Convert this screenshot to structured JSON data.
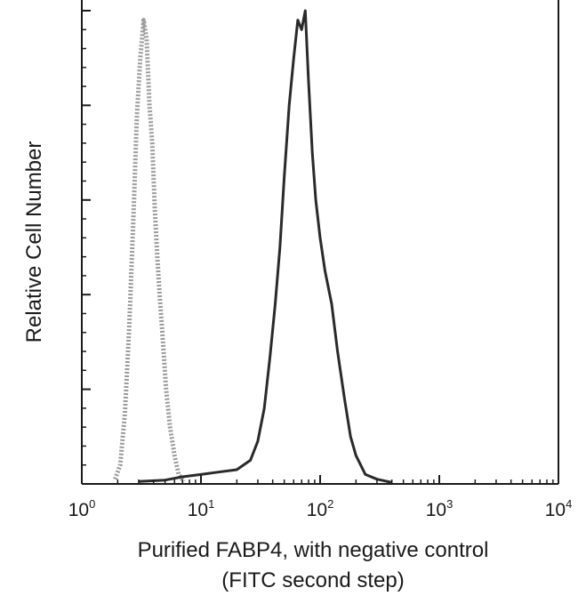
{
  "chart_data": {
    "type": "line",
    "title": "",
    "xscale": "log",
    "xlim": [
      1,
      10000
    ],
    "xticks": [
      {
        "value": 1,
        "base": "10",
        "exp": "0"
      },
      {
        "value": 10,
        "base": "10",
        "exp": "1"
      },
      {
        "value": 100,
        "base": "10",
        "exp": "2"
      },
      {
        "value": 1000,
        "base": "10",
        "exp": "3"
      },
      {
        "value": 10000,
        "base": "10",
        "exp": "4"
      }
    ],
    "xlabel_line1": "Purified FABP4, with negative control",
    "xlabel_line2": "(FITC second step)",
    "ylabel": "Relative Cell Number",
    "ylim": [
      0,
      100
    ],
    "yticks": [
      0,
      20,
      40,
      60,
      80,
      100
    ],
    "grid": false,
    "legend": "none",
    "series": [
      {
        "style": "dotted",
        "color": "#9a9a9a",
        "x": [
          1.9,
          2.1,
          2.3,
          2.5,
          2.7,
          2.9,
          3.1,
          3.3,
          3.5,
          3.7,
          3.9,
          4.1,
          4.3,
          4.5,
          4.8,
          5.1,
          5.5,
          6.0,
          6.5,
          7.2
        ],
        "y": [
          1,
          4,
          15,
          33,
          55,
          78,
          90,
          98,
          94,
          80,
          72,
          58,
          48,
          40,
          30,
          20,
          12,
          6,
          2,
          0.5
        ]
      },
      {
        "style": "solid",
        "color": "#2a2a2a",
        "x": [
          3,
          5,
          7,
          10,
          14,
          20,
          26,
          30,
          34,
          38,
          42,
          46,
          50,
          55,
          60,
          65,
          70,
          75,
          80,
          86,
          92,
          100,
          110,
          125,
          140,
          160,
          180,
          200,
          240,
          300,
          400
        ],
        "y": [
          0.5,
          0.8,
          1.5,
          2,
          2.5,
          3,
          5,
          9,
          16,
          27,
          38,
          50,
          65,
          80,
          90,
          98,
          96,
          100,
          85,
          70,
          60,
          52,
          45,
          38,
          28,
          18,
          10,
          6,
          2,
          1,
          0.3
        ]
      }
    ]
  }
}
